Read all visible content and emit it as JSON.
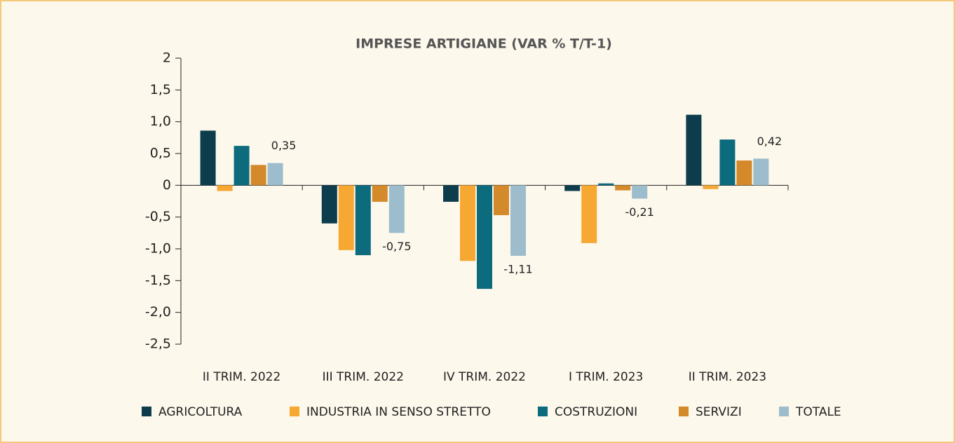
{
  "chart_data": {
    "type": "bar",
    "title": "IMPRESE ARTIGIANE (VAR % T/T-1)",
    "categories": [
      "II TRIM. 2022",
      "III TRIM. 2022",
      "IV TRIM. 2022",
      "I TRIM. 2023",
      "II TRIM. 2023"
    ],
    "series": [
      {
        "name": "AGRICOLTURA",
        "color": "#0d3d4d",
        "values": [
          0.86,
          -0.6,
          -0.26,
          -0.09,
          1.11
        ]
      },
      {
        "name": "INDUSTRIA IN SENSO STRETTO",
        "color": "#f7a833",
        "values": [
          -0.09,
          -1.02,
          -1.19,
          -0.91,
          -0.06
        ]
      },
      {
        "name": "COSTRUZIONI",
        "color": "#0d6b7e",
        "values": [
          0.62,
          -1.1,
          -1.63,
          0.03,
          0.72
        ]
      },
      {
        "name": "SERVIZI",
        "color": "#d4892a",
        "values": [
          0.32,
          -0.26,
          -0.47,
          -0.08,
          0.39
        ]
      },
      {
        "name": "TOTALE",
        "color": "#9dbdcc",
        "values": [
          0.35,
          -0.75,
          -1.11,
          -0.21,
          0.42
        ],
        "value_labels": [
          "0,35",
          "-0,75",
          "-1,11",
          "-0,21",
          "0,42"
        ]
      }
    ],
    "ylim": [
      -2.5,
      2
    ],
    "yticks": [
      {
        "value": -2.5,
        "label": "-2,5"
      },
      {
        "value": -2.0,
        "label": "-2,0"
      },
      {
        "value": -1.5,
        "label": "-1,5"
      },
      {
        "value": -1.0,
        "label": "-1,0"
      },
      {
        "value": -0.5,
        "label": "-0,5"
      },
      0,
      {
        "value": 0.5,
        "label": "0,5"
      },
      {
        "value": 1.0,
        "label": "1,0"
      },
      {
        "value": 1.5,
        "label": "1,5"
      },
      2
    ],
    "legend": "bottom"
  }
}
